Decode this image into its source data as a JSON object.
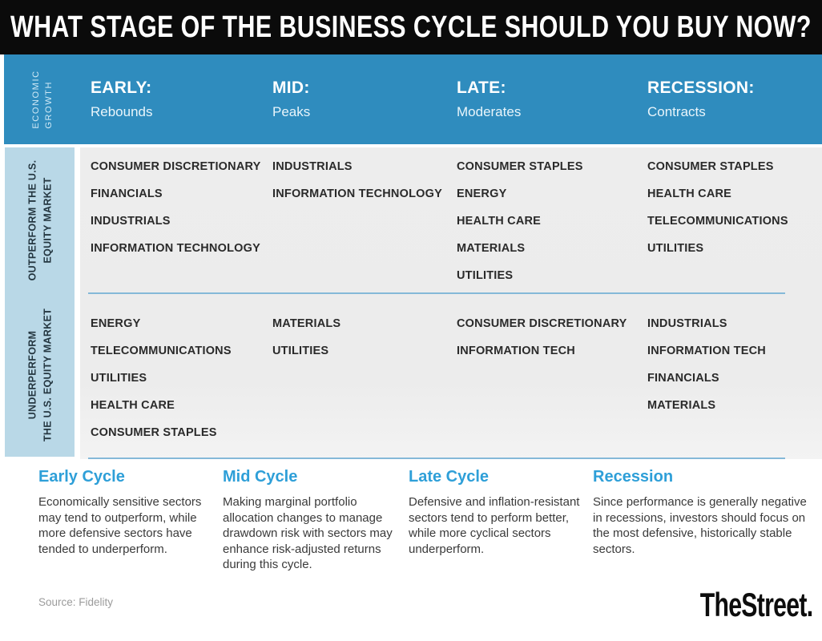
{
  "header": {
    "title": "WHAT STAGE OF THE BUSINESS CYCLE SHOULD YOU BUY NOW?"
  },
  "economic_growth_label": {
    "line1": "ECONOMIC",
    "line2": "GROWTH"
  },
  "stages": [
    {
      "name": "EARLY:",
      "behavior": "Rebounds"
    },
    {
      "name": "MID:",
      "behavior": "Peaks"
    },
    {
      "name": "LATE:",
      "behavior": "Moderates"
    },
    {
      "name": "RECESSION:",
      "behavior": "Contracts"
    }
  ],
  "outperform_label": {
    "line1": "OUTPERFORM THE U.S.",
    "line2": "EQUITY MARKET"
  },
  "underperform_label": {
    "line1": "UNDERPERFORM",
    "line2": "THE U.S. EQUITY MARKET"
  },
  "footer": {
    "source": "Source: Fidelity",
    "logo": "TheStreet."
  },
  "colors": {
    "header_black": "#0b0b0b",
    "band_blue": "#2f8cbe",
    "sidebar_light_blue": "#b9d8e7",
    "content_gray": "#ececec",
    "divider_blue": "#85b9d8",
    "note_title_blue": "#2e9fd8",
    "sector_text": "#2a2a2a",
    "source_gray": "#9b9b9b"
  },
  "chart_data": {
    "type": "table",
    "title": "WHAT STAGE OF THE BUSINESS CYCLE SHOULD YOU BUY NOW?",
    "row_axis_label": "ECONOMIC GROWTH",
    "columns": [
      "EARLY: Rebounds",
      "MID: Peaks",
      "LATE: Moderates",
      "RECESSION: Contracts"
    ],
    "rows": [
      {
        "label": "OUTPERFORM THE U.S. EQUITY MARKET",
        "cells": [
          [
            "CONSUMER DISCRETIONARY",
            "FINANCIALS",
            "INDUSTRIALS",
            "INFORMATION TECHNOLOGY"
          ],
          [
            "INDUSTRIALS",
            "INFORMATION TECHNOLOGY"
          ],
          [
            "CONSUMER STAPLES",
            "ENERGY",
            "HEALTH CARE",
            "MATERIALS",
            "UTILITIES"
          ],
          [
            "CONSUMER STAPLES",
            "HEALTH CARE",
            "TELECOMMUNICATIONS",
            "UTILITIES"
          ]
        ]
      },
      {
        "label": "UNDERPERFORM THE U.S. EQUITY MARKET",
        "cells": [
          [
            "ENERGY",
            "TELECOMMUNICATIONS",
            "UTILITIES",
            "HEALTH CARE",
            "CONSUMER STAPLES"
          ],
          [
            "MATERIALS",
            "UTILITIES"
          ],
          [
            "CONSUMER DISCRETIONARY",
            "INFORMATION TECH"
          ],
          [
            "INDUSTRIALS",
            "INFORMATION TECH",
            "FINANCIALS",
            "MATERIALS"
          ]
        ]
      }
    ],
    "notes": [
      {
        "title": "Early Cycle",
        "text": "Economically sensitive sectors may tend to outperform, while more defensive sectors have tended to underperform."
      },
      {
        "title": "Mid Cycle",
        "text": "Making marginal portfolio allocation changes to manage drawdown risk with sectors may enhance risk-adjusted returns during this cycle."
      },
      {
        "title": "Late Cycle",
        "text": "Defensive and inflation-resistant sectors tend to perform better, while more cyclical sectors underperform."
      },
      {
        "title": "Recession",
        "text": "Since performance is generally negative in recessions, investors should focus on the most defensive, historically stable sectors."
      }
    ],
    "source": "Source: Fidelity",
    "legend_position": "none",
    "grid": false
  }
}
